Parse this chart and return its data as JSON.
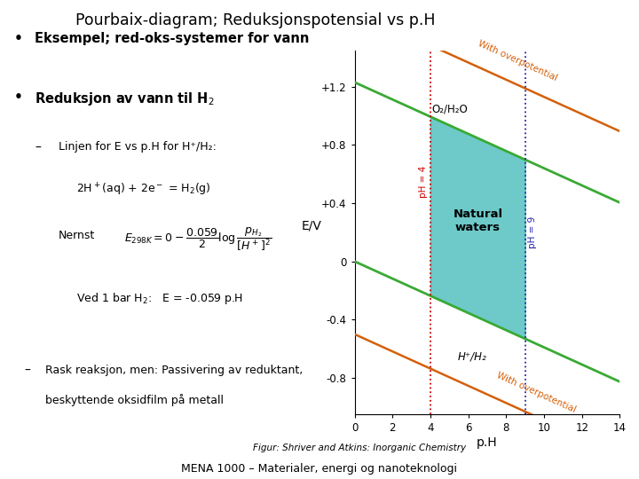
{
  "title": "Pourbaix-diagram; Reduksjonspotensial vs p.H",
  "bg_color": "#ffffff",
  "bullet1": "Eksempel; red-oks-systemer for vann",
  "bullet2_main": "Reduksjon av vann til H",
  "bullet2_sub": "2",
  "sub1": "Linjen for E vs p.H for H⁺/H₂:",
  "eq1": "2H⁺(aq) + 2e⁻ = H₂(g)",
  "nernst_label": "Nernst",
  "ved_label": "Ved 1 bar H₂:   E = -0.059 p.H",
  "sub2_line1": "Rask reaksjon, men: Passivering av reduktant,",
  "sub2_line2": "beskyttende oksidfilm på metall",
  "figur": "Figur: Shriver and Atkins: Inorganic Chemistry",
  "footer": "MENA 1000 – Materialer, energi og nanoteknologi",
  "plot": {
    "xlim": [
      0,
      14
    ],
    "ylim": [
      -1.05,
      1.45
    ],
    "xticks": [
      0,
      2,
      4,
      6,
      8,
      10,
      12,
      14
    ],
    "yticks": [
      -0.8,
      -0.4,
      0,
      0.4,
      0.8,
      1.2
    ],
    "ytick_labels": [
      "-0.8",
      "-0.4",
      "0",
      "+0.4",
      "+0.8",
      "+1.2"
    ],
    "xlabel": "p.H",
    "ylabel": "E/V",
    "green_line1_intercept": 1.23,
    "green_line1_slope": -0.059,
    "green_line2_intercept": 0.0,
    "green_line2_slope": -0.059,
    "orange_line1_intercept": 1.72,
    "orange_line1_slope": -0.059,
    "orange_line2_intercept": -0.5,
    "orange_line2_slope": -0.059,
    "green_color": "#3aaa35",
    "orange_color": "#d4600a",
    "teal_color": "#3db8b8",
    "ph4_color": "#cc0000",
    "ph9_color": "#2222aa",
    "ph4": 4,
    "ph9": 9,
    "natural_waters_text": "Natural\nwaters",
    "o2_label": "O₂/H₂O",
    "h_label": "H⁺/H₂",
    "with_over1": "With overpotential",
    "with_over2": "With overpotential"
  }
}
